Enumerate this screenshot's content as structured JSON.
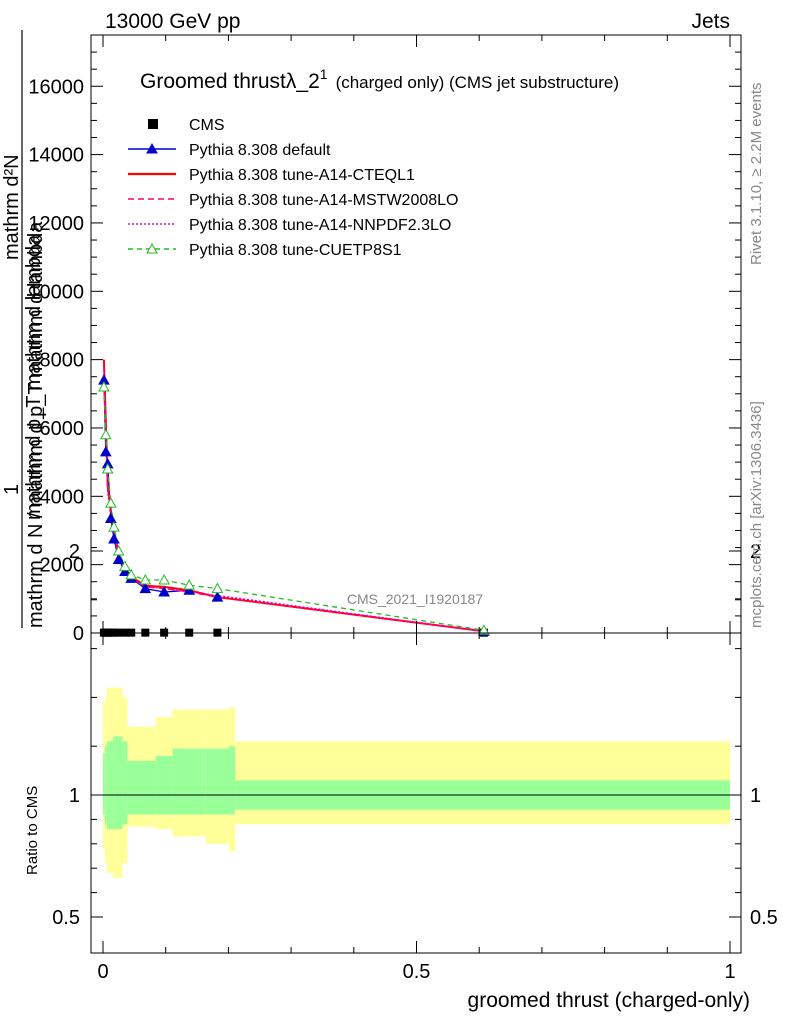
{
  "header": {
    "left": "13000 GeV pp",
    "right": "Jets"
  },
  "side": {
    "rivet": "Rivet 3.1.10, ≥ 2.2M events",
    "mcplots": "mcplots.cern.ch [arXiv:1306.3436]"
  },
  "watermark": "CMS_2021_I1920187",
  "title": {
    "main": "Groomed thrustλ_2",
    "sup": "1",
    "suffix": "(charged only) (CMS jet substructure)"
  },
  "ylabel": {
    "num": "1",
    "den": "mathrm d N / mathrm d p_T mathrm d lambda",
    "top_num": "mathrm d²N",
    "top_den": "mathrm d p_T mathrm d lambda"
  },
  "ratio_ylabel": "Ratio to CMS",
  "xlabel": "groomed thrust (charged-only)",
  "colors": {
    "cms": "#000000",
    "default": "#0000cc",
    "cteql1": "#ff0000",
    "mstw": "#ff0066",
    "nnpdf": "#ee00cc",
    "cuetp8s1": "#22bb22",
    "band_inner": "#99ff99",
    "band_outer": "#ffff99"
  },
  "chart_data": {
    "type": "line",
    "xlabel": "groomed thrust (charged-only)",
    "xlim": [
      0,
      1
    ],
    "ylim": [
      0,
      17500
    ],
    "x_ticks": [
      "0",
      "0.5",
      "1"
    ],
    "y_ticks": [
      "0",
      "2000",
      "4000",
      "6000",
      "8000",
      "10000",
      "12000",
      "14000",
      "16000"
    ],
    "ratio_ylim": [
      0.4,
      2.3
    ],
    "ratio_ticks": [
      "0.5",
      "1",
      "2"
    ],
    "grid": false,
    "legend_position": "top-left",
    "x": [
      0.0015,
      0.0045,
      0.0075,
      0.0125,
      0.0175,
      0.025,
      0.035,
      0.045,
      0.0675,
      0.0975,
      0.1375,
      0.1825,
      0.6075
    ],
    "series": [
      {
        "name": "CMS",
        "key": "cms",
        "marker": "square",
        "dash": "",
        "values": [
          10,
          10,
          10,
          10,
          10,
          10,
          10,
          10,
          10,
          10,
          10,
          10,
          10
        ]
      },
      {
        "name": "Pythia 8.308 default",
        "key": "default",
        "marker": "triangle",
        "dash": "",
        "values": [
          7400,
          5300,
          4950,
          3350,
          2750,
          2150,
          1800,
          1600,
          1300,
          1200,
          1250,
          1050,
          50
        ]
      },
      {
        "name": "Pythia 8.308 tune-A14-CTEQL1",
        "key": "cteql1",
        "marker": "",
        "dash": "",
        "values": [
          8000,
          6200,
          4300,
          3600,
          3000,
          2300,
          1900,
          1650,
          1380,
          1350,
          1250,
          1050,
          50
        ]
      },
      {
        "name": "Pythia 8.308 tune-A14-MSTW2008LO",
        "key": "mstw",
        "marker": "",
        "dash": "6,4",
        "values": [
          7900,
          5900,
          4200,
          3500,
          2900,
          2200,
          1850,
          1600,
          1350,
          1300,
          1200,
          1050,
          50
        ]
      },
      {
        "name": "Pythia 8.308 tune-A14-NNPDF2.3LO",
        "key": "nnpdf",
        "marker": "",
        "dash": "2,2",
        "values": [
          7700,
          5700,
          4100,
          3400,
          2850,
          2200,
          1850,
          1600,
          1350,
          1300,
          1200,
          1100,
          50
        ]
      },
      {
        "name": "Pythia 8.308 tune-CUETP8S1",
        "key": "cuetp8s1",
        "marker": "open-triangle",
        "dash": "5,4",
        "values": [
          7200,
          5800,
          4800,
          3800,
          3100,
          2400,
          1950,
          1700,
          1550,
          1550,
          1400,
          1300,
          80
        ]
      }
    ],
    "ratio_band_edges": [
      0.0,
      0.003,
      0.006,
      0.009,
      0.016,
      0.019,
      0.031,
      0.039,
      0.051,
      0.084,
      0.111,
      0.164,
      0.201,
      0.211,
      1.0
    ],
    "ratio_band_inner": [
      [
        0.92,
        1.17
      ],
      [
        0.88,
        1.2
      ],
      [
        0.86,
        1.22
      ],
      [
        0.86,
        1.22
      ],
      [
        0.86,
        1.24
      ],
      [
        0.86,
        1.24
      ],
      [
        0.88,
        1.22
      ],
      [
        0.92,
        1.14
      ],
      [
        0.92,
        1.14
      ],
      [
        0.92,
        1.16
      ],
      [
        0.92,
        1.19
      ],
      [
        0.92,
        1.19
      ],
      [
        0.92,
        1.2
      ],
      [
        0.94,
        1.06
      ]
    ],
    "ratio_band_outer": [
      [
        0.78,
        1.38
      ],
      [
        0.72,
        1.4
      ],
      [
        0.68,
        1.44
      ],
      [
        0.68,
        1.44
      ],
      [
        0.66,
        1.44
      ],
      [
        0.66,
        1.44
      ],
      [
        0.72,
        1.4
      ],
      [
        0.87,
        1.28
      ],
      [
        0.87,
        1.28
      ],
      [
        0.86,
        1.32
      ],
      [
        0.83,
        1.35
      ],
      [
        0.8,
        1.35
      ],
      [
        0.77,
        1.36
      ],
      [
        0.88,
        1.22
      ]
    ]
  }
}
